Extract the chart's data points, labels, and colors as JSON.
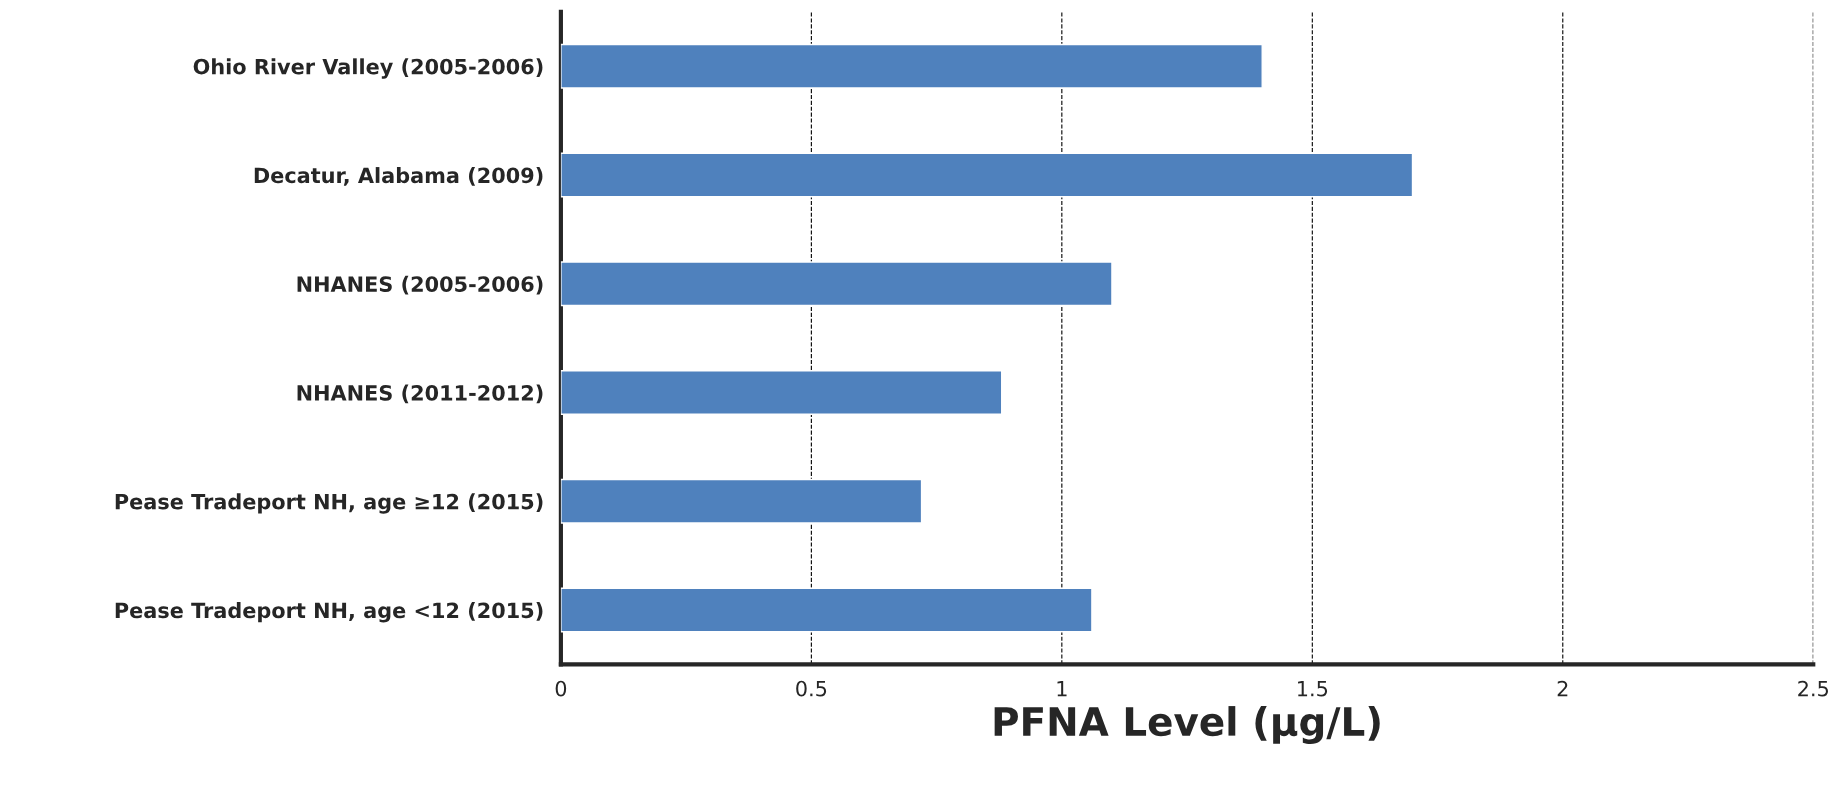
{
  "chart_data": {
    "type": "bar",
    "orientation": "horizontal",
    "xlabel": "PFNA Level (µg/L)",
    "categories": [
      "Ohio River Valley (2005-2006)",
      "Decatur, Alabama (2009)",
      "NHANES (2005-2006)",
      "NHANES (2011-2012)",
      "Pease Tradeport NH, age ≥12 (2015)",
      "Pease Tradeport NH, age <12 (2015)"
    ],
    "values": [
      1.4,
      1.7,
      1.1,
      0.88,
      0.72,
      1.06
    ],
    "color": "#4f81bd",
    "xlim": [
      0,
      2.5
    ],
    "xticks": [
      0,
      0.5,
      1,
      1.5,
      2,
      2.5
    ],
    "grid": "x"
  }
}
